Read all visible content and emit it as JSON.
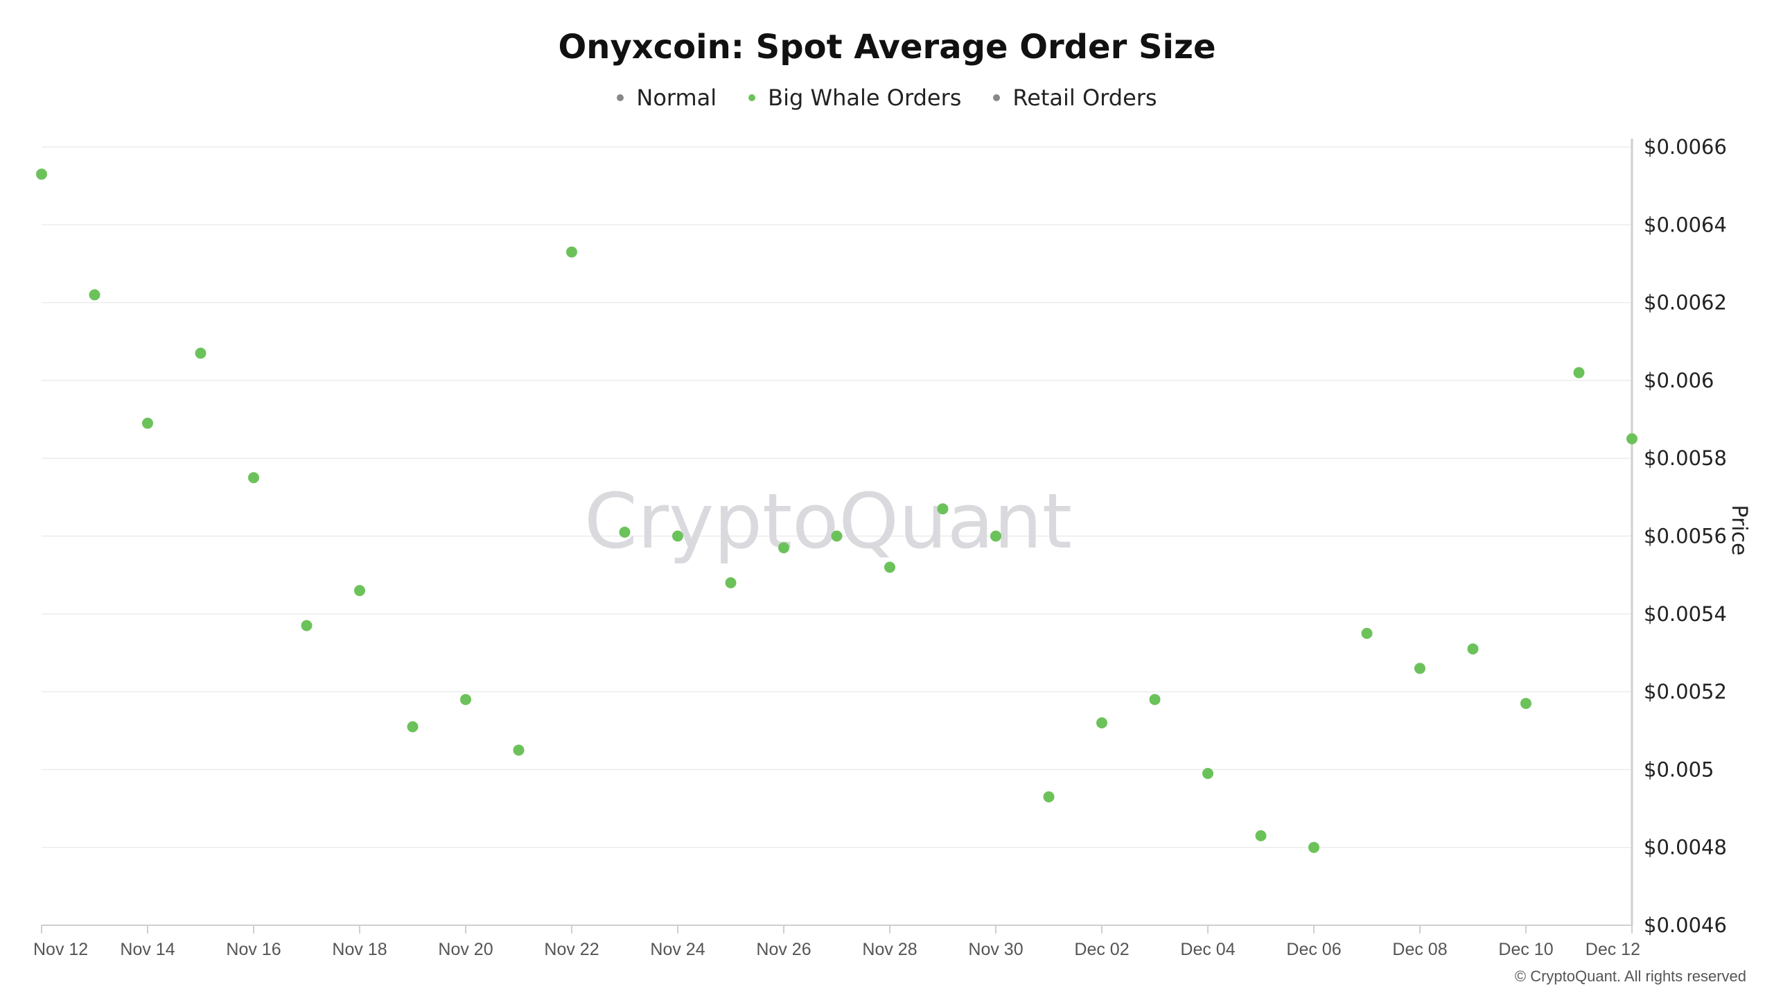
{
  "chart_data": {
    "type": "scatter",
    "title": "Onyxcoin: Spot Average Order Size",
    "ylabel": "Price",
    "ylim": [
      0.0046,
      0.0066
    ],
    "x_tick_labels": [
      "Nov 12",
      "Nov 14",
      "Nov 16",
      "Nov 18",
      "Nov 20",
      "Nov 22",
      "Nov 24",
      "Nov 26",
      "Nov 28",
      "Nov 30",
      "Dec 02",
      "Dec 04",
      "Dec 06",
      "Dec 08",
      "Dec 10",
      "Dec 12"
    ],
    "y_tick_labels": [
      "$0.0066",
      "$0.0064",
      "$0.0062",
      "$0.006",
      "$0.0058",
      "$0.0056",
      "$0.0054",
      "$0.0052",
      "$0.005",
      "$0.0048",
      "$0.0046"
    ],
    "y_tick_values": [
      0.0066,
      0.0064,
      0.0062,
      0.006,
      0.0058,
      0.0056,
      0.0054,
      0.0052,
      0.005,
      0.0048,
      0.0046
    ],
    "grid": true,
    "legend_position": "top-center",
    "series": [
      {
        "name": "Normal",
        "color": "#888888",
        "points": []
      },
      {
        "name": "Big Whale Orders",
        "color": "#6cc25a",
        "points": [
          {
            "x": "Nov 12",
            "y": 0.00653
          },
          {
            "x": "Nov 13",
            "y": 0.00622
          },
          {
            "x": "Nov 14",
            "y": 0.00589
          },
          {
            "x": "Nov 15",
            "y": 0.00607
          },
          {
            "x": "Nov 16",
            "y": 0.00575
          },
          {
            "x": "Nov 17",
            "y": 0.00537
          },
          {
            "x": "Nov 18",
            "y": 0.00546
          },
          {
            "x": "Nov 19",
            "y": 0.00511
          },
          {
            "x": "Nov 20",
            "y": 0.00518
          },
          {
            "x": "Nov 21",
            "y": 0.00505
          },
          {
            "x": "Nov 22",
            "y": 0.00633
          },
          {
            "x": "Nov 23",
            "y": 0.00561
          },
          {
            "x": "Nov 24",
            "y": 0.0056
          },
          {
            "x": "Nov 25",
            "y": 0.00548
          },
          {
            "x": "Nov 26",
            "y": 0.00557
          },
          {
            "x": "Nov 27",
            "y": 0.0056
          },
          {
            "x": "Nov 28",
            "y": 0.00552
          },
          {
            "x": "Nov 29",
            "y": 0.00567
          },
          {
            "x": "Nov 30",
            "y": 0.0056
          },
          {
            "x": "Dec 01",
            "y": 0.00493
          },
          {
            "x": "Dec 02",
            "y": 0.00512
          },
          {
            "x": "Dec 03",
            "y": 0.00518
          },
          {
            "x": "Dec 04",
            "y": 0.00499
          },
          {
            "x": "Dec 05",
            "y": 0.00483
          },
          {
            "x": "Dec 06",
            "y": 0.0048
          },
          {
            "x": "Dec 07",
            "y": 0.00535
          },
          {
            "x": "Dec 08",
            "y": 0.00526
          },
          {
            "x": "Dec 09",
            "y": 0.00531
          },
          {
            "x": "Dec 10",
            "y": 0.00517
          },
          {
            "x": "Dec 11",
            "y": 0.00602
          },
          {
            "x": "Dec 12",
            "y": 0.00585
          }
        ]
      },
      {
        "name": "Retail Orders",
        "color": "#888888",
        "points": []
      }
    ]
  },
  "watermark": "CryptoQuant",
  "copyright": "© CryptoQuant. All rights reserved"
}
